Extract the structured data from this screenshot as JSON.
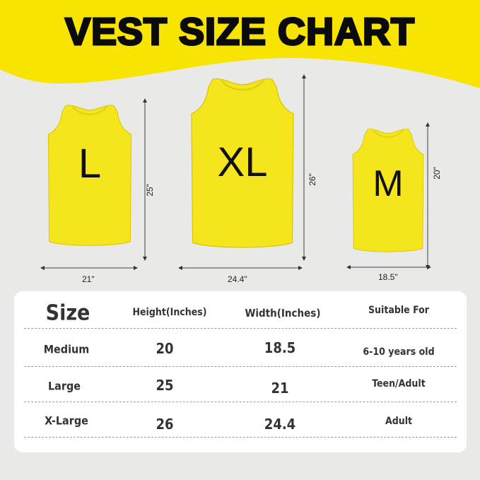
{
  "title": "VEST SIZE CHART",
  "colors": {
    "accent_yellow": "#f7e400",
    "background": "#e9e9e7",
    "vest_yellow": "#f5e51c"
  },
  "vests": [
    {
      "letter": "L",
      "height_label": "25\"",
      "width_label": "21\""
    },
    {
      "letter": "XL",
      "height_label": "26\"",
      "width_label": "24.4\""
    },
    {
      "letter": "M",
      "height_label": "20\"",
      "width_label": "18.5\""
    }
  ],
  "table": {
    "headers": [
      "Size",
      "Height(Inches)",
      "Width(Inches)",
      "Suitable For"
    ],
    "rows": [
      [
        "Medium",
        "20",
        "18.5",
        "6-10 years old"
      ],
      [
        "Large",
        "25",
        "21",
        "Teen/Adult"
      ],
      [
        "X-Large",
        "26",
        "24.4",
        "Adult"
      ]
    ]
  }
}
